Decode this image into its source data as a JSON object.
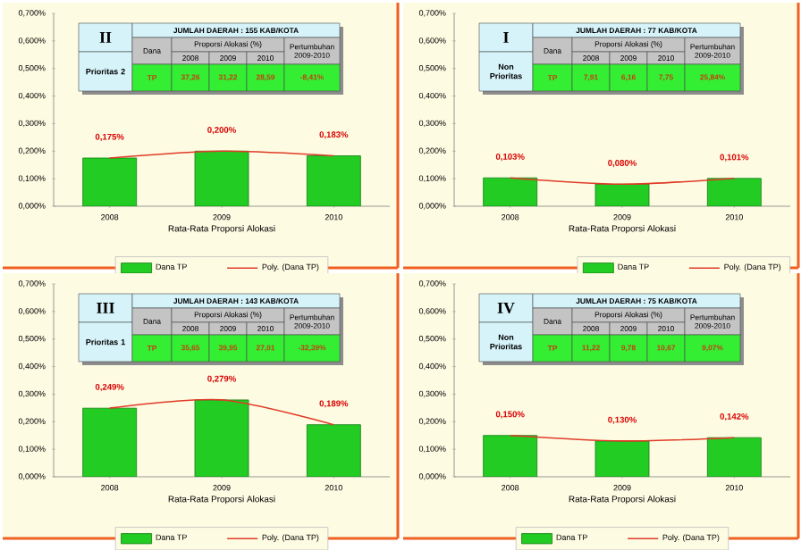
{
  "chart_data": [
    {
      "type": "bar",
      "categories": [
        "2008",
        "2009",
        "2010"
      ],
      "xlabel": "Rata-Rata Proporsi Alokasi",
      "ylim": [
        0,
        0.7
      ],
      "yticks": [
        {
          "value": 0,
          "label": "0,000%"
        },
        {
          "value": 0.1,
          "label": "0,100%"
        },
        {
          "value": 0.2,
          "label": "0,200%"
        },
        {
          "value": 0.3,
          "label": "0,300%"
        },
        {
          "value": 0.4,
          "label": "0,400%"
        },
        {
          "value": 0.5,
          "label": "0,500%"
        },
        {
          "value": 0.6,
          "label": "0,600%"
        },
        {
          "value": 0.7,
          "label": "0,700%"
        }
      ],
      "legend": "bottom",
      "series": [
        {
          "name": "Dana TP",
          "type": "bar",
          "color": "#22cc22",
          "values": [
            0.175,
            0.2,
            0.183
          ],
          "value_labels": [
            "0,175%",
            "0,200%",
            "0,183%"
          ]
        },
        {
          "name": "Poly. (Dana TP)",
          "type": "line",
          "color": "#e03c28",
          "values": [
            0.175,
            0.2,
            0.183
          ]
        }
      ],
      "annotations": [
        "II",
        "Prioritas 2",
        "JUMLAH DAERAH : 155 KAB/KOTA",
        "Dana",
        "Proporsi Alokasi (%)",
        "2008",
        "2009",
        "2010",
        "Pertumbuhan 2009-2010",
        "TP",
        "37,26",
        "31,22",
        "28,59",
        "-8,41%"
      ]
    },
    {
      "type": "bar",
      "categories": [
        "2008",
        "2009",
        "2010"
      ],
      "xlabel": "Rata-Rata Proporsi Alokasi",
      "ylim": [
        0,
        0.7
      ],
      "yticks": [
        {
          "value": 0,
          "label": "0,000%"
        },
        {
          "value": 0.1,
          "label": "0,100%"
        },
        {
          "value": 0.2,
          "label": "0,200%"
        },
        {
          "value": 0.3,
          "label": "0,300%"
        },
        {
          "value": 0.4,
          "label": "0,400%"
        },
        {
          "value": 0.5,
          "label": "0,500%"
        },
        {
          "value": 0.6,
          "label": "0,600%"
        },
        {
          "value": 0.7,
          "label": "0,700%"
        }
      ],
      "legend": "bottom right",
      "series": [
        {
          "name": "Dana TP",
          "type": "bar",
          "color": "#22cc22",
          "values": [
            0.103,
            0.08,
            0.101
          ],
          "value_labels": [
            "0,103%",
            "0,080%",
            "0,101%"
          ]
        },
        {
          "name": "Poly. (Dana TP)",
          "type": "line",
          "color": "#e03c28",
          "values": [
            0.103,
            0.08,
            0.101
          ]
        }
      ],
      "annotations": [
        "I",
        "Non Prioritas",
        "JUMLAH DAERAH : 77 KAB/KOTA",
        "Dana",
        "Proporsi Alokasi (%)",
        "2008",
        "2009",
        "2010",
        "Pertumbuhan 2009-2010",
        "TP",
        "7,91",
        "6,16",
        "7,75",
        "25,84%"
      ]
    },
    {
      "type": "bar",
      "categories": [
        "2008",
        "2009",
        "2010"
      ],
      "xlabel": "Rata-Rata Proporsi Alokasi",
      "ylim": [
        0,
        0.7
      ],
      "yticks": [
        {
          "value": 0,
          "label": "0,000%"
        },
        {
          "value": 0.1,
          "label": "0,100%"
        },
        {
          "value": 0.2,
          "label": "0,200%"
        },
        {
          "value": 0.3,
          "label": "0,300%"
        },
        {
          "value": 0.4,
          "label": "0,400%"
        },
        {
          "value": 0.5,
          "label": "0,500%"
        },
        {
          "value": 0.6,
          "label": "0,600%"
        },
        {
          "value": 0.7,
          "label": "0,700%"
        }
      ],
      "legend": "bottom",
      "series": [
        {
          "name": "Dana TP",
          "type": "bar",
          "color": "#22cc22",
          "values": [
            0.249,
            0.279,
            0.189
          ],
          "value_labels": [
            "0,249%",
            "0,279%",
            "0,189%"
          ]
        },
        {
          "name": "Poly. (Dana TP)",
          "type": "line",
          "color": "#e03c28",
          "values": [
            0.249,
            0.279,
            0.189
          ]
        }
      ],
      "annotations": [
        "III",
        "Prioritas 1",
        "JUMLAH DAERAH : 143 KAB/KOTA",
        "Dana",
        "Proporsi Alokasi (%)",
        "2008",
        "2009",
        "2010",
        "Pertumbuhan 2009-2010",
        "TP",
        "35,65",
        "39,95",
        "27,01",
        "-32,39%"
      ]
    },
    {
      "type": "bar",
      "categories": [
        "2008",
        "2009",
        "2010"
      ],
      "xlabel": "Rata-Rata Proporsi Alokasi",
      "ylim": [
        0,
        0.7
      ],
      "yticks": [
        {
          "value": 0,
          "label": "0,000%"
        },
        {
          "value": 0.1,
          "label": "0,100%"
        },
        {
          "value": 0.2,
          "label": "0,200%"
        },
        {
          "value": 0.3,
          "label": "0,300%"
        },
        {
          "value": 0.4,
          "label": "0,400%"
        },
        {
          "value": 0.5,
          "label": "0,500%"
        },
        {
          "value": 0.6,
          "label": "0,600%"
        },
        {
          "value": 0.7,
          "label": "0,700%"
        }
      ],
      "legend": "bottom",
      "series": [
        {
          "name": "Dana TP",
          "type": "bar",
          "color": "#22cc22",
          "values": [
            0.15,
            0.13,
            0.142
          ],
          "value_labels": [
            "0,150%",
            "0,130%",
            "0,142%"
          ]
        },
        {
          "name": "Poly. (Dana TP)",
          "type": "line",
          "color": "#e03c28",
          "values": [
            0.15,
            0.13,
            0.142
          ]
        }
      ],
      "annotations": [
        "IV",
        "Non Prioritas",
        "JUMLAH DAERAH : 75 KAB/KOTA",
        "Dana",
        "Proporsi Alokasi (%)",
        "2008",
        "2009",
        "2010",
        "Pertumbuhan 2009-2010",
        "TP",
        "11,22",
        "9,78",
        "10,67",
        "9,07%"
      ]
    }
  ]
}
